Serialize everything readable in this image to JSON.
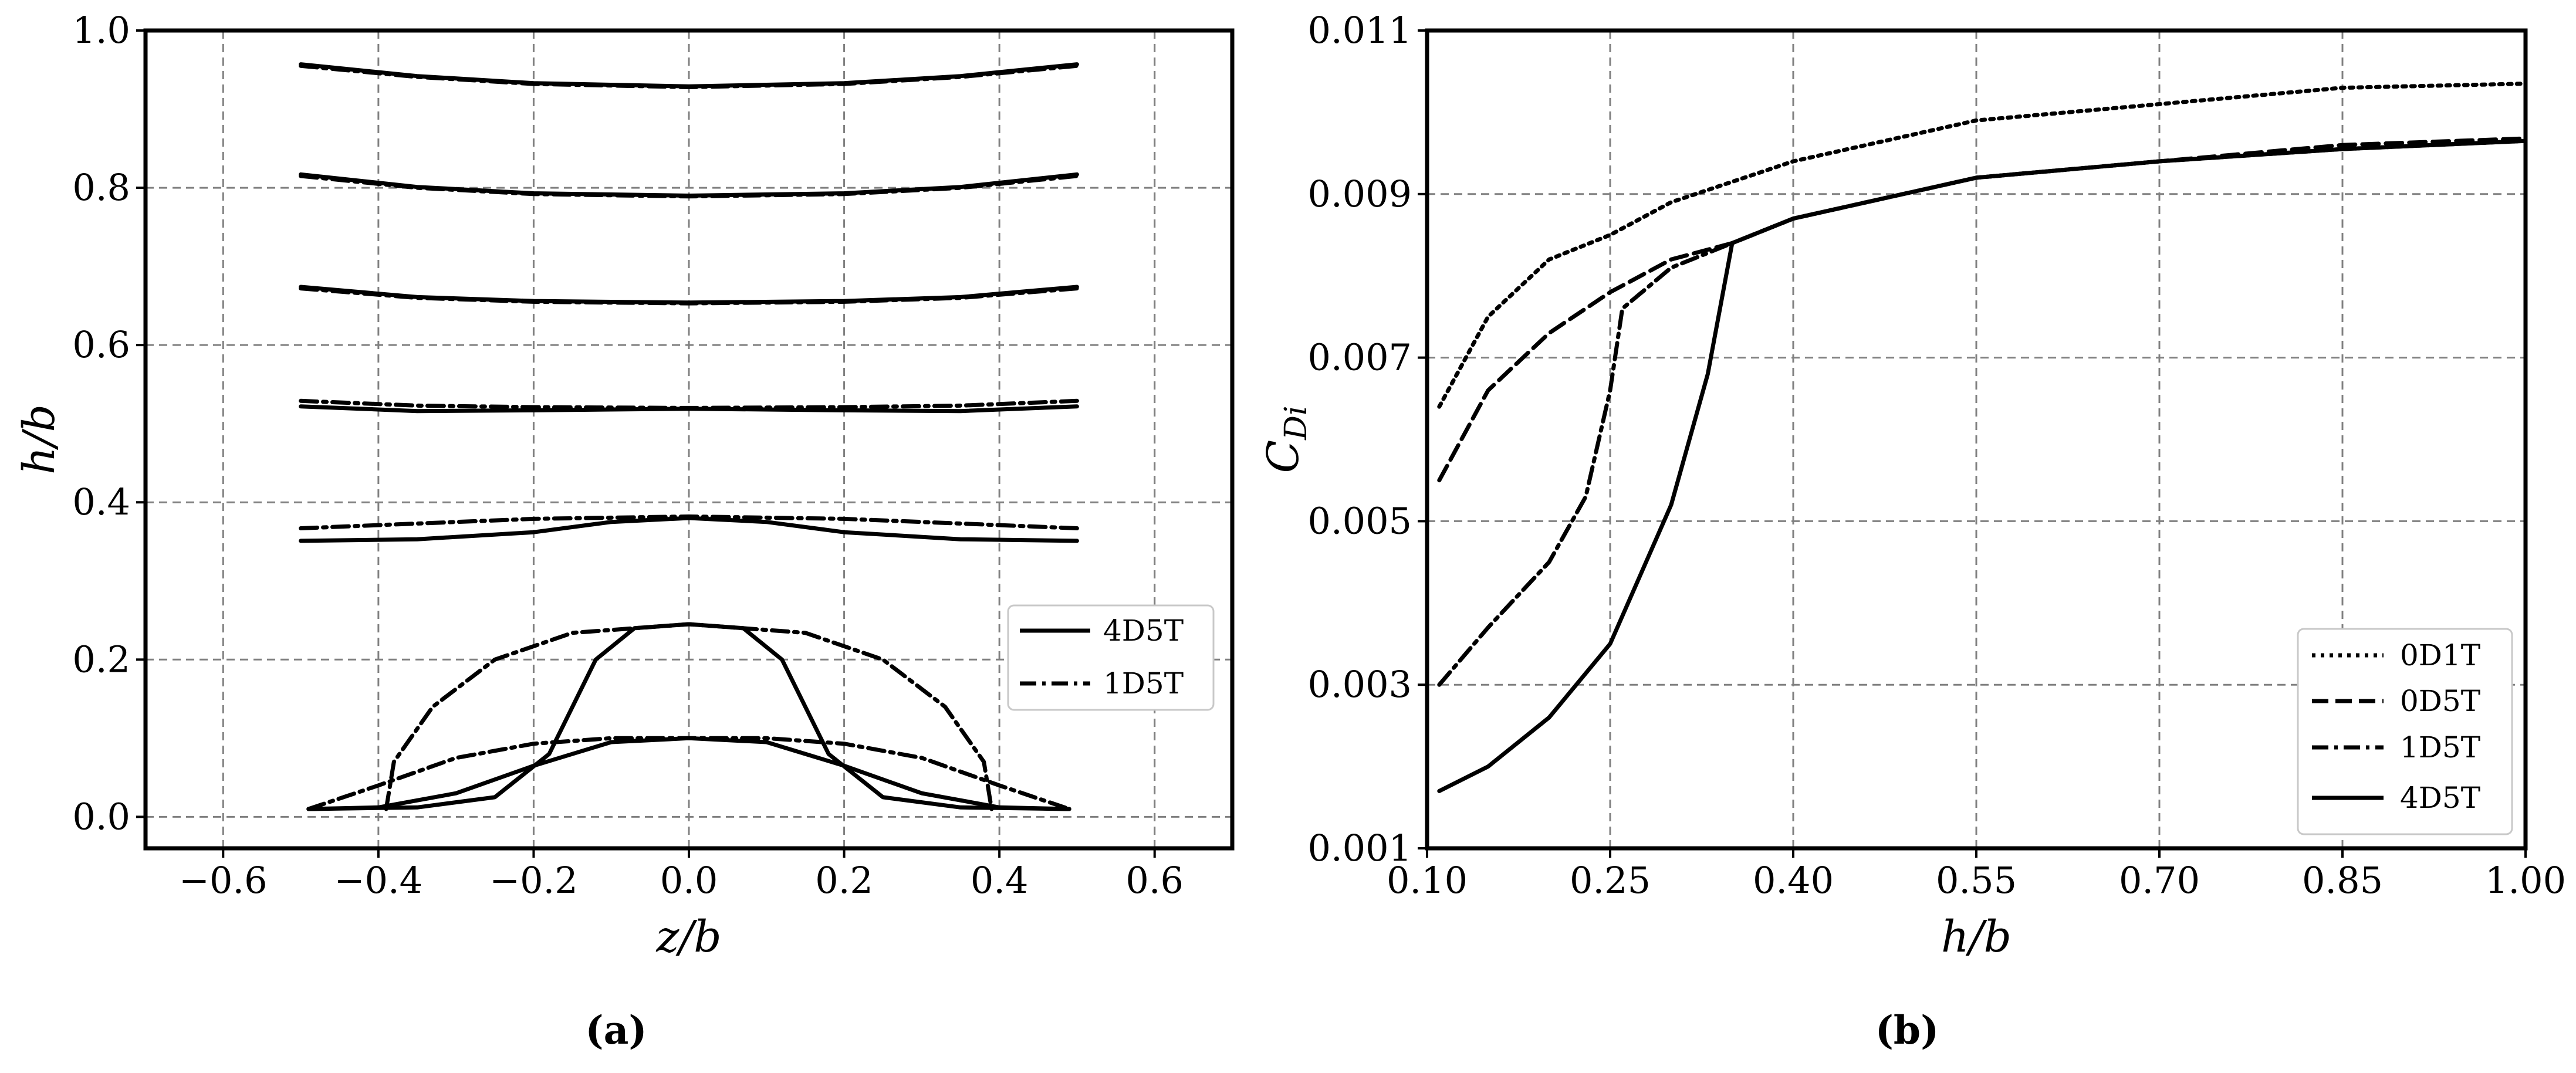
{
  "figure": {
    "caption_a": "(a)",
    "caption_b": "(b)"
  },
  "chart_data": [
    {
      "type": "line",
      "panel": "a",
      "xlabel": "z/b",
      "ylabel": "h/b",
      "xlim": [
        -0.7,
        0.7
      ],
      "ylim": [
        -0.04,
        1.0
      ],
      "xticks": [
        -0.6,
        -0.4,
        -0.2,
        0.0,
        0.2,
        0.4,
        0.6
      ],
      "xtick_labels": [
        "−0.6",
        "−0.4",
        "−0.2",
        "0.0",
        "0.2",
        "0.4",
        "0.6"
      ],
      "yticks": [
        0.0,
        0.2,
        0.4,
        0.6,
        0.8,
        1.0
      ],
      "ytick_labels": [
        "0.0",
        "0.2",
        "0.4",
        "0.6",
        "0.8",
        "1.0"
      ],
      "grid": true,
      "legend_position": "center-right",
      "legend": [
        "4D5T",
        "1D5T"
      ],
      "series": [
        {
          "name": "4D5T",
          "style": "solid",
          "curves": [
            [
              [
                -0.5,
                0.957
              ],
              [
                -0.35,
                0.942
              ],
              [
                -0.2,
                0.933
              ],
              [
                0,
                0.929
              ],
              [
                0.2,
                0.933
              ],
              [
                0.35,
                0.942
              ],
              [
                0.5,
                0.957
              ]
            ],
            [
              [
                -0.5,
                0.817
              ],
              [
                -0.35,
                0.801
              ],
              [
                -0.2,
                0.793
              ],
              [
                0,
                0.79
              ],
              [
                0.2,
                0.793
              ],
              [
                0.35,
                0.801
              ],
              [
                0.5,
                0.817
              ]
            ],
            [
              [
                -0.5,
                0.674
              ],
              [
                -0.35,
                0.661
              ],
              [
                -0.2,
                0.656
              ],
              [
                0,
                0.654
              ],
              [
                0.2,
                0.656
              ],
              [
                0.35,
                0.661
              ],
              [
                0.5,
                0.674
              ]
            ],
            [
              [
                -0.5,
                0.522
              ],
              [
                -0.35,
                0.516
              ],
              [
                -0.2,
                0.517
              ],
              [
                0,
                0.519
              ],
              [
                0.2,
                0.517
              ],
              [
                0.35,
                0.516
              ],
              [
                0.5,
                0.522
              ]
            ],
            [
              [
                -0.5,
                0.351
              ],
              [
                -0.35,
                0.353
              ],
              [
                -0.2,
                0.362
              ],
              [
                -0.1,
                0.375
              ],
              [
                0,
                0.38
              ],
              [
                0.1,
                0.375
              ],
              [
                0.2,
                0.362
              ],
              [
                0.35,
                0.353
              ],
              [
                0.5,
                0.351
              ]
            ],
            [
              [
                -0.49,
                0.01
              ],
              [
                -0.35,
                0.012
              ],
              [
                -0.25,
                0.025
              ],
              [
                -0.18,
                0.08
              ],
              [
                -0.12,
                0.2
              ],
              [
                -0.07,
                0.24
              ],
              [
                0,
                0.245
              ],
              [
                0.07,
                0.24
              ],
              [
                0.12,
                0.2
              ],
              [
                0.18,
                0.08
              ],
              [
                0.25,
                0.025
              ],
              [
                0.35,
                0.012
              ],
              [
                0.49,
                0.01
              ]
            ],
            [
              [
                -0.49,
                0.01
              ],
              [
                -0.4,
                0.012
              ],
              [
                -0.3,
                0.03
              ],
              [
                -0.2,
                0.065
              ],
              [
                -0.1,
                0.095
              ],
              [
                0,
                0.1
              ],
              [
                0.1,
                0.095
              ],
              [
                0.2,
                0.065
              ],
              [
                0.3,
                0.03
              ],
              [
                0.4,
                0.012
              ],
              [
                0.49,
                0.01
              ]
            ]
          ]
        },
        {
          "name": "1D5T",
          "style": "dashdot",
          "curves": [
            [
              [
                -0.5,
                0.955
              ],
              [
                -0.35,
                0.941
              ],
              [
                -0.2,
                0.932
              ],
              [
                0,
                0.928
              ],
              [
                0.2,
                0.932
              ],
              [
                0.35,
                0.941
              ],
              [
                0.5,
                0.955
              ]
            ],
            [
              [
                -0.5,
                0.815
              ],
              [
                -0.35,
                0.8
              ],
              [
                -0.2,
                0.792
              ],
              [
                0,
                0.789
              ],
              [
                0.2,
                0.792
              ],
              [
                0.35,
                0.8
              ],
              [
                0.5,
                0.815
              ]
            ],
            [
              [
                -0.5,
                0.672
              ],
              [
                -0.35,
                0.66
              ],
              [
                -0.2,
                0.655
              ],
              [
                0,
                0.653
              ],
              [
                0.2,
                0.655
              ],
              [
                0.35,
                0.66
              ],
              [
                0.5,
                0.672
              ]
            ],
            [
              [
                -0.5,
                0.529
              ],
              [
                -0.35,
                0.523
              ],
              [
                -0.2,
                0.521
              ],
              [
                0,
                0.52
              ],
              [
                0.2,
                0.521
              ],
              [
                0.35,
                0.523
              ],
              [
                0.5,
                0.529
              ]
            ],
            [
              [
                -0.5,
                0.367
              ],
              [
                -0.35,
                0.373
              ],
              [
                -0.2,
                0.379
              ],
              [
                0,
                0.382
              ],
              [
                0.2,
                0.379
              ],
              [
                0.35,
                0.373
              ],
              [
                0.5,
                0.367
              ]
            ],
            [
              [
                -0.39,
                0.01
              ],
              [
                -0.38,
                0.07
              ],
              [
                -0.33,
                0.14
              ],
              [
                -0.25,
                0.2
              ],
              [
                -0.15,
                0.234
              ],
              [
                0,
                0.245
              ],
              [
                0.15,
                0.234
              ],
              [
                0.25,
                0.2
              ],
              [
                0.33,
                0.14
              ],
              [
                0.38,
                0.07
              ],
              [
                0.39,
                0.01
              ]
            ],
            [
              [
                -0.49,
                0.01
              ],
              [
                -0.4,
                0.04
              ],
              [
                -0.3,
                0.075
              ],
              [
                -0.2,
                0.093
              ],
              [
                -0.1,
                0.1
              ],
              [
                0,
                0.1
              ],
              [
                0.1,
                0.1
              ],
              [
                0.2,
                0.093
              ],
              [
                0.3,
                0.075
              ],
              [
                0.4,
                0.04
              ],
              [
                0.49,
                0.01
              ]
            ]
          ]
        }
      ]
    },
    {
      "type": "line",
      "panel": "b",
      "xlabel": "h/b",
      "ylabel": "C_Di",
      "ylabel_main": "C",
      "ylabel_sub": "Di",
      "xlim": [
        0.1,
        1.0
      ],
      "ylim": [
        0.001,
        0.011
      ],
      "xticks": [
        0.1,
        0.25,
        0.4,
        0.55,
        0.7,
        0.85,
        1.0
      ],
      "xtick_labels": [
        "0.10",
        "0.25",
        "0.40",
        "0.55",
        "0.70",
        "0.85",
        "1.00"
      ],
      "yticks": [
        0.001,
        0.003,
        0.005,
        0.007,
        0.009,
        0.011
      ],
      "ytick_labels": [
        "0.001",
        "0.003",
        "0.005",
        "0.007",
        "0.009",
        "0.011"
      ],
      "grid": true,
      "legend_position": "bottom-right",
      "legend": [
        "0D1T",
        "0D5T",
        "1D5T",
        "4D5T"
      ],
      "series": [
        {
          "name": "0D1T",
          "style": "dotted",
          "points": [
            [
              0.11,
              0.0064
            ],
            [
              0.15,
              0.0075
            ],
            [
              0.2,
              0.0082
            ],
            [
              0.25,
              0.0085
            ],
            [
              0.3,
              0.0089
            ],
            [
              0.4,
              0.0094
            ],
            [
              0.55,
              0.0099
            ],
            [
              0.7,
              0.0101
            ],
            [
              0.85,
              0.0103
            ],
            [
              1.0,
              0.01035
            ]
          ]
        },
        {
          "name": "0D5T",
          "style": "dashed",
          "points": [
            [
              0.11,
              0.0055
            ],
            [
              0.15,
              0.0066
            ],
            [
              0.2,
              0.0073
            ],
            [
              0.25,
              0.0078
            ],
            [
              0.3,
              0.0082
            ],
            [
              0.35,
              0.0084
            ],
            [
              0.4,
              0.0087
            ],
            [
              0.55,
              0.0092
            ],
            [
              0.7,
              0.0094
            ],
            [
              0.85,
              0.0096
            ],
            [
              1.0,
              0.00968
            ]
          ]
        },
        {
          "name": "1D5T",
          "style": "dashdot",
          "points": [
            [
              0.11,
              0.003
            ],
            [
              0.15,
              0.0037
            ],
            [
              0.2,
              0.0045
            ],
            [
              0.23,
              0.0053
            ],
            [
              0.25,
              0.0066
            ],
            [
              0.26,
              0.0076
            ],
            [
              0.3,
              0.0081
            ],
            [
              0.35,
              0.0084
            ],
            [
              0.4,
              0.0087
            ],
            [
              0.55,
              0.0092
            ],
            [
              0.7,
              0.0094
            ],
            [
              0.85,
              0.00955
            ],
            [
              1.0,
              0.00965
            ]
          ]
        },
        {
          "name": "4D5T",
          "style": "solid",
          "points": [
            [
              0.11,
              0.0017
            ],
            [
              0.15,
              0.002
            ],
            [
              0.2,
              0.0026
            ],
            [
              0.25,
              0.0035
            ],
            [
              0.3,
              0.0052
            ],
            [
              0.33,
              0.0068
            ],
            [
              0.35,
              0.0084
            ],
            [
              0.4,
              0.0087
            ],
            [
              0.55,
              0.0092
            ],
            [
              0.7,
              0.0094
            ],
            [
              0.85,
              0.00955
            ],
            [
              1.0,
              0.00965
            ]
          ]
        }
      ]
    }
  ]
}
